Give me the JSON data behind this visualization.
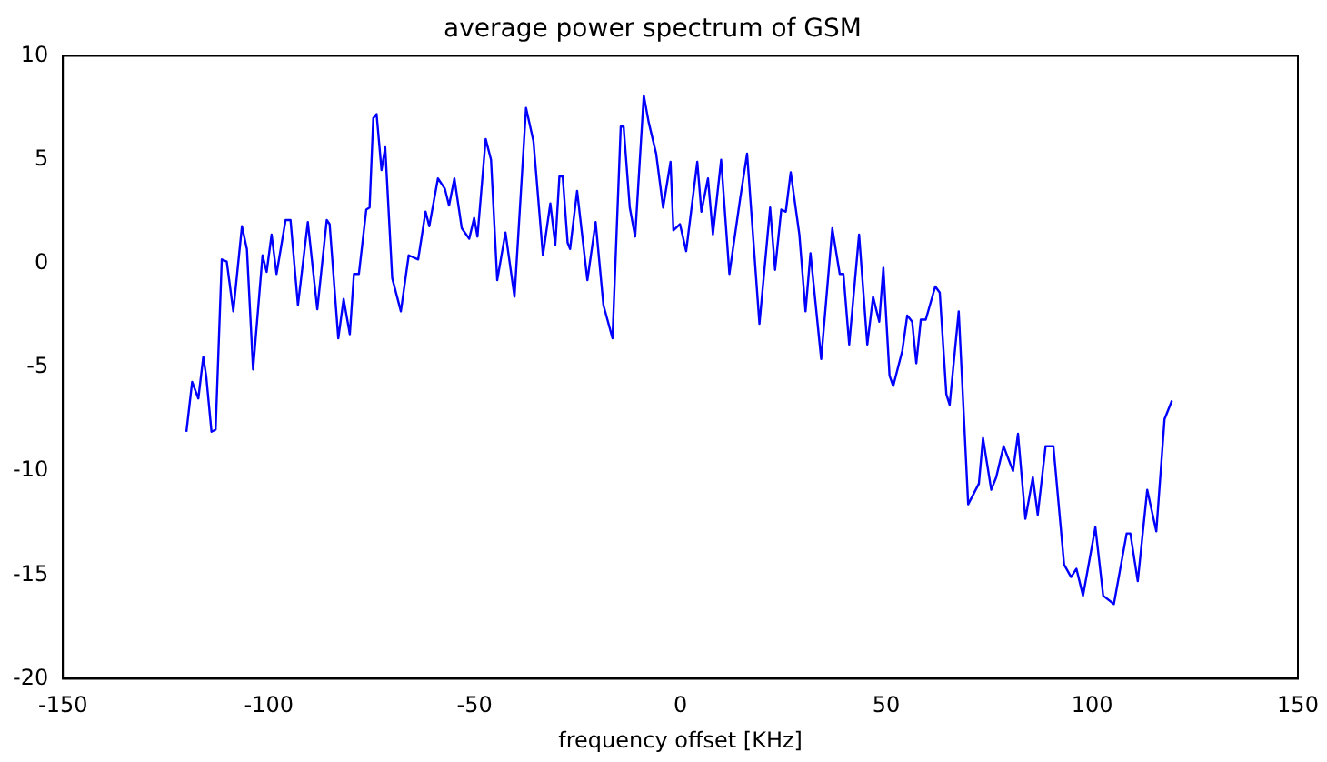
{
  "chart_data": {
    "type": "line",
    "title": "average power spectrum of GSM",
    "xlabel": "frequency offset [KHz]",
    "x": [
      -120,
      -118.6,
      -117.1,
      -115.9,
      -115.2,
      -113.9,
      -112.9,
      -111.4,
      -110.2,
      -108.6,
      -106.5,
      -105.3,
      -103.8,
      -101.5,
      -100.5,
      -99.3,
      -98.1,
      -95.9,
      -94.7,
      -92.9,
      -90.5,
      -88.2,
      -85.9,
      -85.2,
      -83.1,
      -81.8,
      -80.3,
      -79.3,
      -78.1,
      -76.3,
      -75.5,
      -74.6,
      -73.8,
      -72.6,
      -71.7,
      -70,
      -67.9,
      -66,
      -63.7,
      -61.9,
      -61,
      -58.9,
      -57.2,
      -56.2,
      -54.9,
      -53.1,
      -51.3,
      -50.1,
      -49.3,
      -47.3,
      -46,
      -44.5,
      -42.5,
      -40.3,
      -37.5,
      -35.7,
      -33.4,
      -31.6,
      -30.4,
      -29.4,
      -28.6,
      -27.4,
      -26.8,
      -25.1,
      -22.6,
      -20.6,
      -18.7,
      -16.5,
      -14.5,
      -13.8,
      -12.3,
      -11,
      -8.9,
      -7.7,
      -5.9,
      -4.2,
      -2.4,
      -1.7,
      -0.1,
      1.4,
      4.1,
      5.1,
      6.7,
      7.9,
      9.9,
      11.9,
      14.5,
      16.2,
      19.2,
      21.8,
      23,
      24.5,
      25.6,
      26.8,
      28.9,
      30.4,
      31.6,
      34.2,
      36.9,
      38.7,
      39.6,
      41,
      43.4,
      45.4,
      46.8,
      48.3,
      49.3,
      50.8,
      51.7,
      53.9,
      55.1,
      56.3,
      57.3,
      58.4,
      59.6,
      61.9,
      63,
      64.6,
      65.4,
      67.6,
      69.9,
      72.5,
      73.5,
      75.5,
      76.7,
      78.5,
      80.8,
      82,
      83.8,
      85.6,
      86.8,
      88.7,
      90.6,
      93.2,
      94.9,
      96.2,
      97.8,
      100.8,
      102.7,
      105.3,
      108.4,
      109.3,
      111.1,
      113.4,
      115.6,
      117.6,
      119.4
    ],
    "series": [
      {
        "color": "#0000ff",
        "values": [
          -8.1,
          -5.7,
          -6.5,
          -4.5,
          -5.4,
          -8.1,
          -8,
          0.2,
          0.1,
          -2.3,
          1.8,
          0.7,
          -5.1,
          0.4,
          -0.4,
          1.4,
          -0.5,
          2.1,
          2.1,
          -2,
          2,
          -2.2,
          2.1,
          1.9,
          -3.6,
          -1.7,
          -3.4,
          -0.5,
          -0.5,
          2.6,
          2.7,
          7,
          7.2,
          4.5,
          5.6,
          -0.7,
          -2.3,
          0.4,
          0.2,
          2.5,
          1.8,
          4.1,
          3.6,
          2.8,
          4.1,
          1.7,
          1.2,
          2.2,
          1.3,
          6,
          5,
          -0.8,
          1.5,
          -1.6,
          7.5,
          5.9,
          0.4,
          2.9,
          0.9,
          4.2,
          4.2,
          1,
          0.7,
          3.5,
          -0.8,
          2,
          -2,
          -3.6,
          6.6,
          6.6,
          2.7,
          1.3,
          8.1,
          6.8,
          5.3,
          2.7,
          4.9,
          1.6,
          1.9,
          0.6,
          4.9,
          2.5,
          4.1,
          1.4,
          5,
          -0.5,
          3.1,
          5.3,
          -2.9,
          2.7,
          -0.3,
          2.6,
          2.5,
          4.4,
          1.4,
          -2.3,
          0.5,
          -4.6,
          1.7,
          -0.5,
          -0.5,
          -3.9,
          1.4,
          -3.9,
          -1.6,
          -2.8,
          -0.2,
          -5.4,
          -5.9,
          -4.2,
          -2.5,
          -2.8,
          -4.8,
          -2.7,
          -2.7,
          -1.1,
          -1.4,
          -6.3,
          -6.8,
          -2.3,
          -11.6,
          -10.6,
          -8.4,
          -10.9,
          -10.3,
          -8.8,
          -10,
          -8.2,
          -12.3,
          -10.3,
          -12.1,
          -8.8,
          -8.8,
          -14.5,
          -15.1,
          -14.7,
          -16,
          -12.7,
          -16,
          -16.4,
          -13,
          -13,
          -15.3,
          -10.9,
          -12.9,
          -7.5,
          -6.6
        ]
      }
    ],
    "xlim": [
      -150,
      150
    ],
    "xticks": [
      -150,
      -100,
      -50,
      0,
      50,
      100,
      150
    ],
    "ylim": [
      -20,
      10
    ],
    "yticks": [
      -20,
      -15,
      -10,
      -5,
      0,
      5,
      10
    ],
    "grid": false,
    "legend": false,
    "marker": "none",
    "line_style": "solid"
  }
}
